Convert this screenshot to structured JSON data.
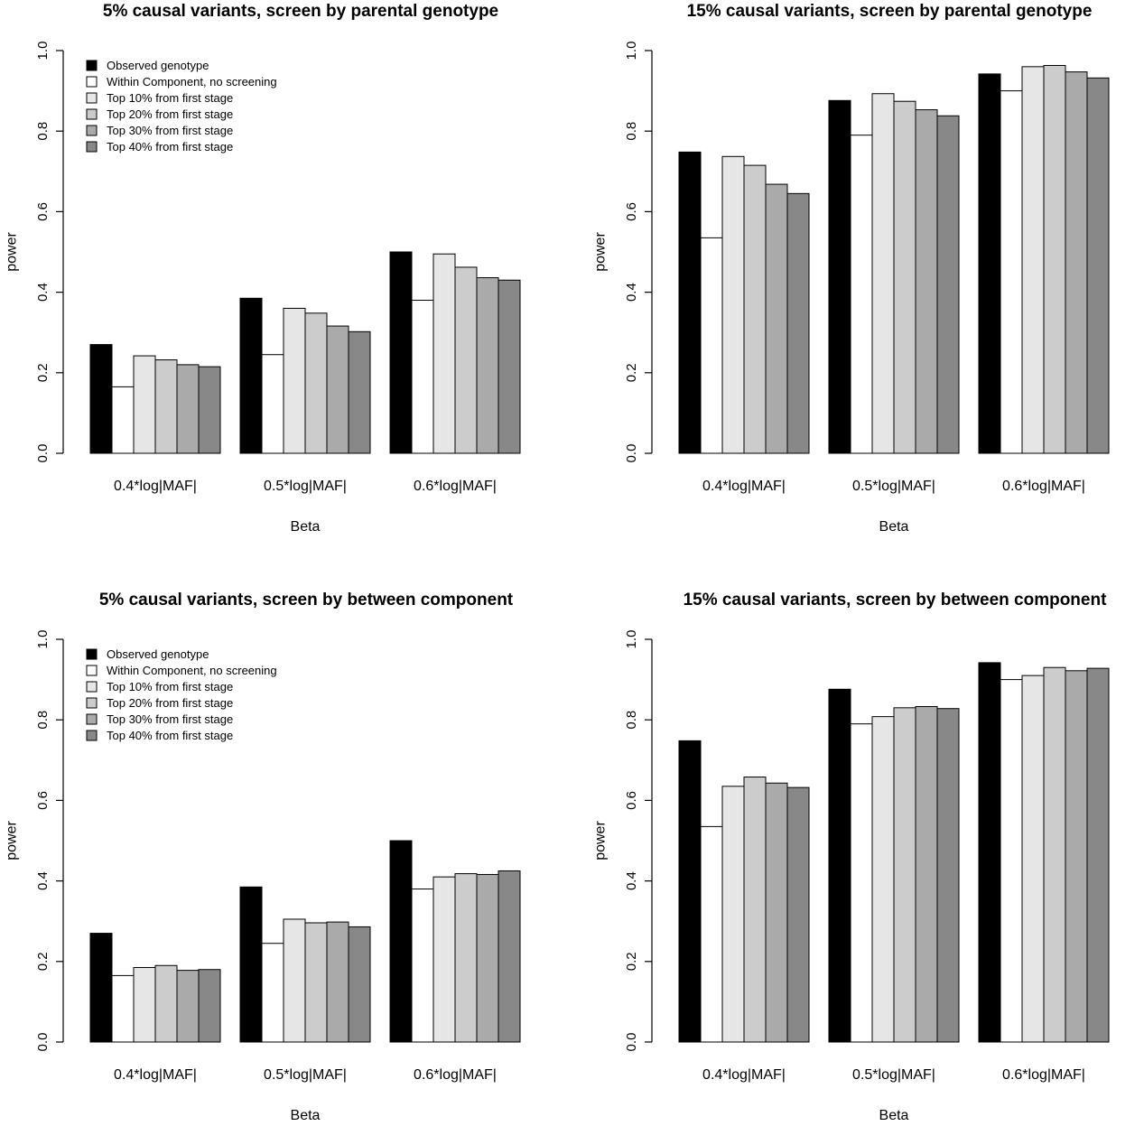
{
  "figure": {
    "palette": [
      "#000000",
      "#ffffff",
      "#e6e6e6",
      "#cccccc",
      "#aaaaaa",
      "#888888"
    ]
  },
  "chart_data": [
    {
      "type": "bar",
      "title": "5% causal variants, screen by parental genotype",
      "xlabel": "Beta",
      "ylabel": "power",
      "ylim": [
        0,
        1
      ],
      "yticks": [
        "0.0",
        "0.2",
        "0.4",
        "0.6",
        "0.8",
        "1.0"
      ],
      "grid": false,
      "legend": "top-left",
      "categories": [
        "0.4*log|MAF|",
        "0.5*log|MAF|",
        "0.6*log|MAF|"
      ],
      "series": [
        {
          "name": "Observed genotype",
          "color": "#000000",
          "values": [
            0.27,
            0.385,
            0.5
          ]
        },
        {
          "name": "Within Component, no screening",
          "color": "#ffffff",
          "values": [
            0.165,
            0.245,
            0.38
          ]
        },
        {
          "name": "Top 10% from first stage",
          "color": "#e6e6e6",
          "values": [
            0.242,
            0.36,
            0.495
          ]
        },
        {
          "name": "Top 20% from first stage",
          "color": "#cccccc",
          "values": [
            0.232,
            0.348,
            0.462
          ]
        },
        {
          "name": "Top 30% from first stage",
          "color": "#aaaaaa",
          "values": [
            0.22,
            0.316,
            0.436
          ]
        },
        {
          "name": "Top 40% from first stage",
          "color": "#888888",
          "values": [
            0.215,
            0.302,
            0.43
          ]
        }
      ]
    },
    {
      "type": "bar",
      "title": "15% causal variants, screen by parental genotype",
      "xlabel": "Beta",
      "ylabel": "power",
      "ylim": [
        0,
        1
      ],
      "yticks": [
        "0.0",
        "0.2",
        "0.4",
        "0.6",
        "0.8",
        "1.0"
      ],
      "grid": false,
      "legend": "none",
      "categories": [
        "0.4*log|MAF|",
        "0.5*log|MAF|",
        "0.6*log|MAF|"
      ],
      "series": [
        {
          "name": "Observed genotype",
          "color": "#000000",
          "values": [
            0.748,
            0.876,
            0.942
          ]
        },
        {
          "name": "Within Component, no screening",
          "color": "#ffffff",
          "values": [
            0.535,
            0.79,
            0.9
          ]
        },
        {
          "name": "Top 10% from first stage",
          "color": "#e6e6e6",
          "values": [
            0.737,
            0.893,
            0.96
          ]
        },
        {
          "name": "Top 20% from first stage",
          "color": "#cccccc",
          "values": [
            0.715,
            0.874,
            0.963
          ]
        },
        {
          "name": "Top 30% from first stage",
          "color": "#aaaaaa",
          "values": [
            0.668,
            0.853,
            0.947
          ]
        },
        {
          "name": "Top 40% from first stage",
          "color": "#888888",
          "values": [
            0.645,
            0.838,
            0.932
          ]
        }
      ]
    },
    {
      "type": "bar",
      "title": "5% causal variants, screen by between component",
      "xlabel": "Beta",
      "ylabel": "power",
      "ylim": [
        0,
        1
      ],
      "yticks": [
        "0.0",
        "0.2",
        "0.4",
        "0.6",
        "0.8",
        "1.0"
      ],
      "grid": false,
      "legend": "top-left",
      "categories": [
        "0.4*log|MAF|",
        "0.5*log|MAF|",
        "0.6*log|MAF|"
      ],
      "series": [
        {
          "name": "Observed genotype",
          "color": "#000000",
          "values": [
            0.27,
            0.385,
            0.5
          ]
        },
        {
          "name": "Within Component, no screening",
          "color": "#ffffff",
          "values": [
            0.165,
            0.245,
            0.38
          ]
        },
        {
          "name": "Top 10% from first stage",
          "color": "#e6e6e6",
          "values": [
            0.185,
            0.305,
            0.41
          ]
        },
        {
          "name": "Top 20% from first stage",
          "color": "#cccccc",
          "values": [
            0.19,
            0.296,
            0.418
          ]
        },
        {
          "name": "Top 30% from first stage",
          "color": "#aaaaaa",
          "values": [
            0.178,
            0.298,
            0.416
          ]
        },
        {
          "name": "Top 40% from first stage",
          "color": "#888888",
          "values": [
            0.18,
            0.286,
            0.425
          ]
        }
      ]
    },
    {
      "type": "bar",
      "title": "15% causal variants, screen by between component",
      "xlabel": "Beta",
      "ylabel": "power",
      "ylim": [
        0,
        1
      ],
      "yticks": [
        "0.0",
        "0.2",
        "0.4",
        "0.6",
        "0.8",
        "1.0"
      ],
      "grid": false,
      "legend": "none",
      "categories": [
        "0.4*log|MAF|",
        "0.5*log|MAF|",
        "0.6*log|MAF|"
      ],
      "series": [
        {
          "name": "Observed genotype",
          "color": "#000000",
          "values": [
            0.748,
            0.876,
            0.942
          ]
        },
        {
          "name": "Within Component, no screening",
          "color": "#ffffff",
          "values": [
            0.535,
            0.79,
            0.9
          ]
        },
        {
          "name": "Top 10% from first stage",
          "color": "#e6e6e6",
          "values": [
            0.635,
            0.808,
            0.91
          ]
        },
        {
          "name": "Top 20% from first stage",
          "color": "#cccccc",
          "values": [
            0.658,
            0.83,
            0.93
          ]
        },
        {
          "name": "Top 30% from first stage",
          "color": "#aaaaaa",
          "values": [
            0.643,
            0.833,
            0.922
          ]
        },
        {
          "name": "Top 40% from first stage",
          "color": "#888888",
          "values": [
            0.632,
            0.828,
            0.928
          ]
        }
      ]
    }
  ]
}
